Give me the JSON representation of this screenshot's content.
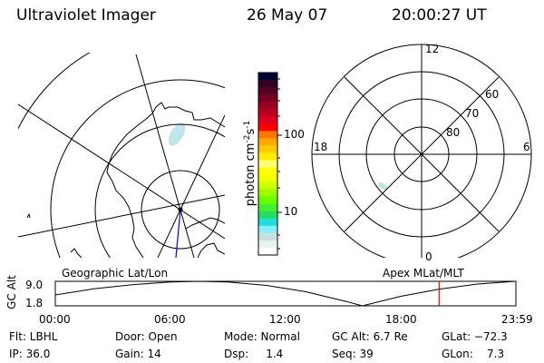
{
  "header": {
    "instrument": "Ultraviolet Imager",
    "date": "26 May 07",
    "time": "20:00:27 UT"
  },
  "colorbar": {
    "label_base": "photon cm",
    "label_exp1": "-2",
    "label_mid": "s",
    "label_exp2": "-1",
    "ticks": [
      "100",
      "10"
    ],
    "scale": "log",
    "colors": [
      "#000033",
      "#330022",
      "#550022",
      "#770022",
      "#990022",
      "#bb0022",
      "#dd0022",
      "#ff0000",
      "#ff7700",
      "#ffaa00",
      "#ffcc00",
      "#ffee00",
      "#ffff77",
      "#ffff00",
      "#eeff00",
      "#ccff00",
      "#99ff00",
      "#66ff00",
      "#44ee33",
      "#22dd66",
      "#22dddd",
      "#88eeff",
      "#ccdddd",
      "#e8f2ee",
      "#ffffff"
    ]
  },
  "left_map": {
    "label": "Geographic Lat/Lon",
    "aurora_color": "#bfe6ea",
    "track_color": "#0000ff"
  },
  "right_map": {
    "label": "Apex MLat/MLT",
    "mlt_labels": [
      "12",
      "6",
      "0",
      "18"
    ],
    "mlat_labels": [
      "80",
      "70",
      "60"
    ]
  },
  "chart_data": {
    "type": "line",
    "ylabel": "GC Alt",
    "yticks": [
      "9.0",
      "1.8"
    ],
    "ylim": [
      1.8,
      9.0
    ],
    "xticks": [
      "00:00",
      "06:00",
      "12:00",
      "18:00",
      "23:59"
    ],
    "xlim_hours": [
      0,
      23.98
    ],
    "x_hours": [
      0,
      2,
      4,
      6,
      7.5,
      9,
      11,
      13,
      15,
      16,
      18,
      20,
      22,
      23.98
    ],
    "values": [
      5.0,
      6.8,
      8.0,
      8.8,
      9.0,
      8.8,
      7.8,
      6.0,
      3.3,
      1.8,
      4.6,
      6.7,
      8.2,
      9.0
    ],
    "current_time_hours": 20.0,
    "current_marker_color": "#ff0000"
  },
  "status": {
    "flt": "Flt: LBHL",
    "ip": "IP: 36.0",
    "door": "Door: Open",
    "gain": "Gain: 14",
    "mode": "Mode: Normal",
    "dsp": "Dsp:     1.4",
    "gcalt": "GC Alt: 6.7 Re",
    "seq": "Seq: 39",
    "glat": "GLat: −72.3",
    "glon": "GLon:    7.3"
  }
}
